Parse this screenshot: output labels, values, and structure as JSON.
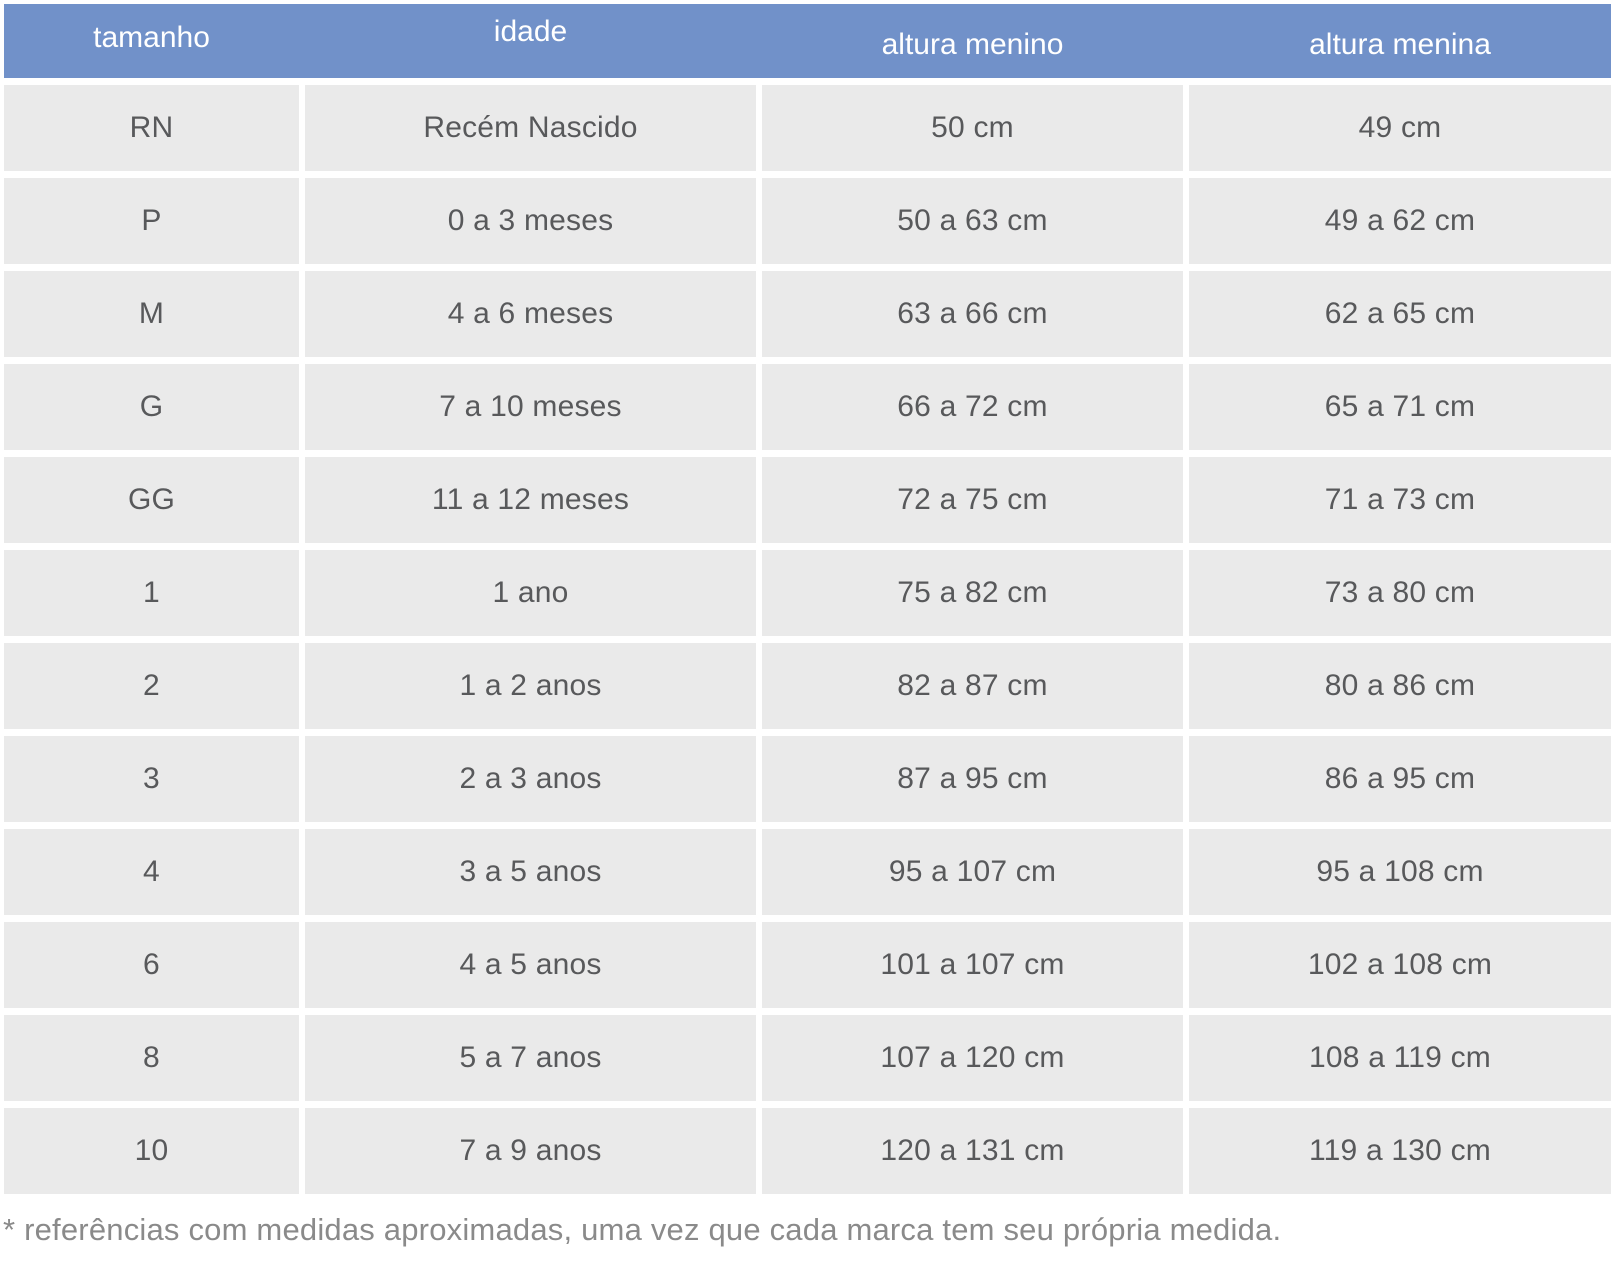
{
  "chart_data": {
    "type": "table",
    "columns": [
      "tamanho",
      "idade",
      "altura menino",
      "altura menina"
    ],
    "column_keys": [
      "tamanho",
      "idade",
      "altura-menino",
      "altura-menina"
    ],
    "rows": [
      [
        "RN",
        "Recém Nascido",
        "50 cm",
        "49 cm"
      ],
      [
        "P",
        "0 a 3 meses",
        "50 a 63 cm",
        "49 a 62 cm"
      ],
      [
        "M",
        "4 a 6 meses",
        "63 a 66 cm",
        "62 a 65 cm"
      ],
      [
        "G",
        "7 a 10 meses",
        "66 a 72 cm",
        "65 a 71 cm"
      ],
      [
        "GG",
        "11 a 12 meses",
        "72 a 75 cm",
        "71 a 73 cm"
      ],
      [
        "1",
        "1 ano",
        "75 a 82 cm",
        "73 a 80 cm"
      ],
      [
        "2",
        "1 a 2 anos",
        "82 a 87 cm",
        "80 a 86 cm"
      ],
      [
        "3",
        "2 a 3 anos",
        "87 a 95 cm",
        "86 a 95 cm"
      ],
      [
        "4",
        "3 a 5 anos",
        "95 a 107 cm",
        "95 a 108 cm"
      ],
      [
        "6",
        "4 a 5 anos",
        "101 a 107 cm",
        "102 a 108 cm"
      ],
      [
        "8",
        "5 a 7 anos",
        "107 a 120 cm",
        "108 a 119 cm"
      ],
      [
        "10",
        "7 a 9 anos",
        "120 a 131 cm",
        "119 a 130 cm"
      ]
    ],
    "title": "",
    "legend": "none",
    "grid": "white gridlines between gray cells"
  },
  "footnote": "* referências com medidas aproximadas, uma vez que cada marca tem seu própria medida.",
  "colors": {
    "header_bg": "#7191c9",
    "header_text": "#ffffff",
    "row_bg": "#eaeaea",
    "body_text": "#58595b",
    "footnote_text": "#8a8a8a",
    "page_bg": "#ffffff"
  }
}
